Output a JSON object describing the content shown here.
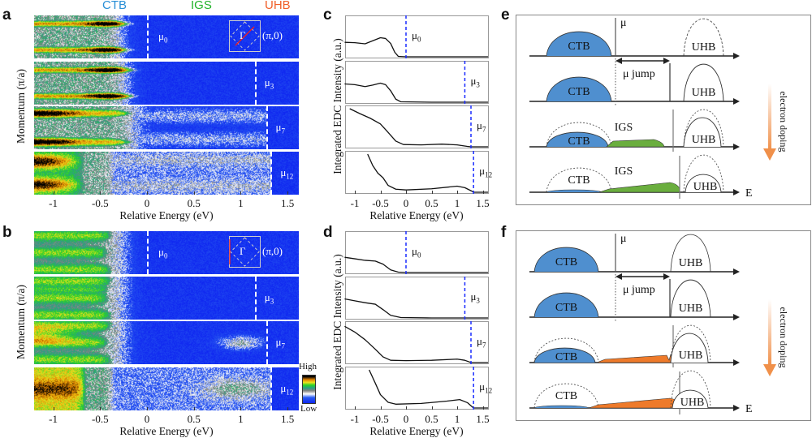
{
  "header": {
    "ctb": "CTB",
    "igs": "IGS",
    "uhb": "UHB"
  },
  "colors": {
    "ctb": "#2a8fd6",
    "igs": "#22b22a",
    "uhb": "#f0602a",
    "ctb_fill": "#4f8fcf",
    "igs_fill_e": "#6aae3e",
    "igs_fill_f": "#ee7a2a",
    "mu_line_edc": "#1a2cff",
    "doping_arrow": "#f0904a"
  },
  "panel_labels": {
    "a": "a",
    "b": "b",
    "c": "c",
    "d": "d",
    "e": "e",
    "f": "f"
  },
  "chart_data": [
    {
      "panel": "a",
      "type": "heatmap",
      "xlabel": "Relative Energy (eV)",
      "ylabel": "Momentum (π/a)",
      "xticks": [
        {
          "value": -1,
          "label": "-1"
        },
        {
          "value": -0.5,
          "label": "-0.5"
        },
        {
          "value": 0,
          "label": "0"
        },
        {
          "value": 0.5,
          "label": "0.5"
        },
        {
          "value": 1,
          "label": "1"
        },
        {
          "value": 1.5,
          "label": "1.5"
        }
      ],
      "xlim": [
        -1.22,
        1.63
      ],
      "colormap": "blue-white-gray-green-yellow-orange-black",
      "rows": [
        {
          "mu_symbol": "μ",
          "mu_sub": "0",
          "mu_value": 0
        },
        {
          "mu_symbol": "μ",
          "mu_sub": "3",
          "mu_value": 1.15
        },
        {
          "mu_symbol": "μ",
          "mu_sub": "7",
          "mu_value": 1.27
        },
        {
          "mu_symbol": "μ",
          "mu_sub": "12",
          "mu_value": 1.32
        }
      ],
      "inset": {
        "center_label": "Γ",
        "corner_label": "(π,0)",
        "cut": "diagonal"
      }
    },
    {
      "panel": "b",
      "type": "heatmap",
      "xlabel": "Relative Energy (eV)",
      "ylabel": "Momentum (π/a)",
      "xticks": [
        {
          "value": -1,
          "label": "-1"
        },
        {
          "value": -0.5,
          "label": "-0.5"
        },
        {
          "value": 0,
          "label": "0"
        },
        {
          "value": 0.5,
          "label": "0.5"
        },
        {
          "value": 1,
          "label": "1"
        },
        {
          "value": 1.5,
          "label": "1.5"
        }
      ],
      "xlim": [
        -1.22,
        1.63
      ],
      "colormap": "blue-white-gray-green-yellow-orange-black",
      "rows": [
        {
          "mu_symbol": "μ",
          "mu_sub": "0",
          "mu_value": 0
        },
        {
          "mu_symbol": "μ",
          "mu_sub": "3",
          "mu_value": 1.15
        },
        {
          "mu_symbol": "μ",
          "mu_sub": "7",
          "mu_value": 1.27
        },
        {
          "mu_symbol": "μ",
          "mu_sub": "12",
          "mu_value": 1.32
        }
      ],
      "inset": {
        "center_label": "Γ",
        "corner_label": "(π,0)",
        "cut": "vertical"
      },
      "colorbar": {
        "high": "High",
        "low": "Low"
      }
    },
    {
      "panel": "c",
      "type": "line",
      "xlabel": "Relative Energy (eV)",
      "ylabel": "Integrated EDC Intensity (a.u.)",
      "xticks": [
        {
          "value": -1,
          "label": "-1"
        },
        {
          "value": -0.5,
          "label": "-0.5"
        },
        {
          "value": 0,
          "label": "0"
        },
        {
          "value": 0.5,
          "label": "0.5"
        },
        {
          "value": 1,
          "label": "1"
        },
        {
          "value": 1.5,
          "label": "1.5"
        }
      ],
      "xlim": [
        -1.2,
        1.63
      ],
      "series": [
        {
          "mu_symbol": "μ",
          "mu_sub": "0",
          "mu_value": 0,
          "points": [
            [
              -1.2,
              0.38
            ],
            [
              -1.0,
              0.37
            ],
            [
              -0.8,
              0.34
            ],
            [
              -0.65,
              0.42
            ],
            [
              -0.5,
              0.5
            ],
            [
              -0.4,
              0.48
            ],
            [
              -0.3,
              0.35
            ],
            [
              -0.22,
              0.12
            ],
            [
              -0.15,
              0.01
            ],
            [
              0,
              0
            ]
          ]
        },
        {
          "mu_symbol": "μ",
          "mu_sub": "3",
          "mu_value": 1.15,
          "points": [
            [
              -1.2,
              0.48
            ],
            [
              -1.0,
              0.46
            ],
            [
              -0.8,
              0.41
            ],
            [
              -0.65,
              0.45
            ],
            [
              -0.5,
              0.5
            ],
            [
              -0.4,
              0.46
            ],
            [
              -0.3,
              0.3
            ],
            [
              -0.2,
              0.08
            ],
            [
              -0.1,
              0.01
            ],
            [
              0.5,
              0
            ],
            [
              1.15,
              0
            ]
          ]
        },
        {
          "mu_symbol": "μ",
          "mu_sub": "7",
          "mu_value": 1.27,
          "points": [
            [
              -1.1,
              1.0
            ],
            [
              -0.9,
              0.87
            ],
            [
              -0.7,
              0.75
            ],
            [
              -0.5,
              0.6
            ],
            [
              -0.35,
              0.38
            ],
            [
              -0.2,
              0.15
            ],
            [
              -0.05,
              0.06
            ],
            [
              0.3,
              0.05
            ],
            [
              0.7,
              0.07
            ],
            [
              1.0,
              0.05
            ],
            [
              1.2,
              0.01
            ],
            [
              1.27,
              0
            ]
          ]
        },
        {
          "mu_symbol": "μ",
          "mu_sub": "12",
          "mu_value": 1.32,
          "points": [
            [
              -0.75,
              1.0
            ],
            [
              -0.65,
              0.7
            ],
            [
              -0.55,
              0.5
            ],
            [
              -0.45,
              0.38
            ],
            [
              -0.35,
              0.18
            ],
            [
              -0.2,
              0.08
            ],
            [
              0,
              0.06
            ],
            [
              0.5,
              0.09
            ],
            [
              1.0,
              0.16
            ],
            [
              1.15,
              0.12
            ],
            [
              1.27,
              0.04
            ],
            [
              1.32,
              0
            ]
          ]
        }
      ]
    },
    {
      "panel": "d",
      "type": "line",
      "xlabel": "Relative Energy (eV)",
      "ylabel": "Integrated EDC Intensity (a.u.)",
      "xticks": [
        {
          "value": -1,
          "label": "-1"
        },
        {
          "value": -0.5,
          "label": "-0.5"
        },
        {
          "value": 0,
          "label": "0"
        },
        {
          "value": 0.5,
          "label": "0.5"
        },
        {
          "value": 1,
          "label": "1"
        },
        {
          "value": 1.5,
          "label": "1.5"
        }
      ],
      "xlim": [
        -1.2,
        1.63
      ],
      "series": [
        {
          "mu_symbol": "μ",
          "mu_sub": "0",
          "mu_value": 0,
          "points": [
            [
              -1.2,
              0.4
            ],
            [
              -1.0,
              0.36
            ],
            [
              -0.8,
              0.32
            ],
            [
              -0.6,
              0.3
            ],
            [
              -0.45,
              0.22
            ],
            [
              -0.3,
              0.07
            ],
            [
              -0.15,
              0.01
            ],
            [
              0,
              0
            ]
          ]
        },
        {
          "mu_symbol": "μ",
          "mu_sub": "3",
          "mu_value": 1.15,
          "points": [
            [
              -1.2,
              0.5
            ],
            [
              -1.0,
              0.45
            ],
            [
              -0.8,
              0.4
            ],
            [
              -0.6,
              0.36
            ],
            [
              -0.45,
              0.22
            ],
            [
              -0.3,
              0.07
            ],
            [
              -0.1,
              0.01
            ],
            [
              0.5,
              0
            ],
            [
              1.15,
              0
            ]
          ]
        },
        {
          "mu_symbol": "μ",
          "mu_sub": "7",
          "mu_value": 1.27,
          "points": [
            [
              -1.2,
              0.95
            ],
            [
              -1.0,
              0.8
            ],
            [
              -0.8,
              0.6
            ],
            [
              -0.6,
              0.35
            ],
            [
              -0.45,
              0.15
            ],
            [
              -0.3,
              0.06
            ],
            [
              0,
              0.05
            ],
            [
              0.5,
              0.06
            ],
            [
              1.0,
              0.09
            ],
            [
              1.15,
              0.06
            ],
            [
              1.27,
              0
            ]
          ]
        },
        {
          "mu_symbol": "μ",
          "mu_sub": "12",
          "mu_value": 1.32,
          "points": [
            [
              -0.72,
              1.0
            ],
            [
              -0.6,
              0.65
            ],
            [
              -0.5,
              0.35
            ],
            [
              -0.35,
              0.15
            ],
            [
              -0.2,
              0.1
            ],
            [
              0.3,
              0.12
            ],
            [
              0.8,
              0.18
            ],
            [
              1.05,
              0.22
            ],
            [
              1.2,
              0.14
            ],
            [
              1.32,
              0
            ]
          ]
        }
      ]
    }
  ],
  "diagrams": [
    {
      "panel": "e",
      "mu": "μ",
      "mu_jump": "μ jump",
      "ctb": "CTB",
      "igs": "IGS",
      "uhb": "UHB",
      "energy_axis": "E",
      "doping": "electron doping"
    },
    {
      "panel": "f",
      "mu": "μ",
      "mu_jump": "μ jump",
      "ctb": "CTB",
      "uhb": "UHB",
      "energy_axis": "E",
      "doping": "electron doping"
    }
  ]
}
